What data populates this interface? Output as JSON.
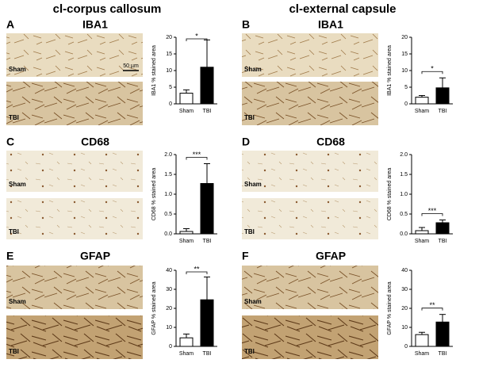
{
  "columns": [
    "cl-corpus callosum",
    "cl-external capsule"
  ],
  "scale_bar": "50 µm",
  "panels": [
    {
      "letter": "A",
      "stain": "IBA1",
      "image_labels": [
        "Sham",
        "TBI"
      ]
    },
    {
      "letter": "B",
      "stain": "IBA1",
      "image_labels": [
        "Sham",
        "TBI"
      ]
    },
    {
      "letter": "C",
      "stain": "CD68",
      "image_labels": [
        "Sham",
        "TBI"
      ]
    },
    {
      "letter": "D",
      "stain": "CD68",
      "image_labels": [
        "Sham",
        "TBI"
      ]
    },
    {
      "letter": "E",
      "stain": "GFAP",
      "image_labels": [
        "Sham",
        "TBI"
      ]
    },
    {
      "letter": "F",
      "stain": "GFAP",
      "image_labels": [
        "Sham",
        "TBI"
      ]
    }
  ],
  "chart_data": [
    {
      "type": "bar",
      "ylabel": "IBA1 % stained area",
      "categories": [
        "Sham",
        "TBI"
      ],
      "values": [
        3.2,
        11
      ],
      "errors": [
        1.0,
        8.2
      ],
      "colors": [
        "#ffffff",
        "#000000"
      ],
      "ylim": [
        0,
        20
      ],
      "yticks": [
        0,
        5,
        10,
        15,
        20
      ],
      "annotation": "*"
    },
    {
      "type": "bar",
      "ylabel": "IBA1 % stained area",
      "categories": [
        "Sham",
        "TBI"
      ],
      "values": [
        2.0,
        4.8
      ],
      "errors": [
        0.5,
        3.0
      ],
      "colors": [
        "#ffffff",
        "#000000"
      ],
      "ylim": [
        0,
        20
      ],
      "yticks": [
        0,
        5,
        10,
        15,
        20
      ],
      "annotation": "*"
    },
    {
      "type": "bar",
      "ylabel": "CD68 % stained area",
      "categories": [
        "Sham",
        "TBI"
      ],
      "values": [
        0.06,
        1.27
      ],
      "errors": [
        0.07,
        0.5
      ],
      "colors": [
        "#ffffff",
        "#000000"
      ],
      "ylim": [
        0,
        2
      ],
      "yticks": [
        {
          "value": 0,
          "label": "0.0"
        },
        0.5,
        {
          "value": 1,
          "label": "1.0"
        },
        1.5,
        {
          "value": 2,
          "label": "2.0"
        }
      ],
      "annotation": "***"
    },
    {
      "type": "bar",
      "ylabel": "CD68 % stained area",
      "categories": [
        "Sham",
        "TBI"
      ],
      "values": [
        0.08,
        0.28
      ],
      "errors": [
        0.08,
        0.07
      ],
      "colors": [
        "#ffffff",
        "#000000"
      ],
      "ylim": [
        0,
        2
      ],
      "yticks": [
        {
          "value": 0,
          "label": "0.0"
        },
        0.5,
        {
          "value": 1,
          "label": "1.0"
        },
        1.5,
        {
          "value": 2,
          "label": "2.0"
        }
      ],
      "annotation": "***"
    },
    {
      "type": "bar",
      "ylabel": "GFAP % stained area",
      "categories": [
        "Sham",
        "TBI"
      ],
      "values": [
        4.5,
        24.5
      ],
      "errors": [
        2.0,
        12
      ],
      "colors": [
        "#ffffff",
        "#000000"
      ],
      "ylim": [
        0,
        40
      ],
      "yticks": [
        0,
        10,
        20,
        30,
        40
      ],
      "annotation": "**"
    },
    {
      "type": "bar",
      "ylabel": "GFAP % stained area",
      "categories": [
        "Sham",
        "TBI"
      ],
      "values": [
        6.2,
        12.8
      ],
      "errors": [
        1.2,
        4
      ],
      "colors": [
        "#ffffff",
        "#000000"
      ],
      "ylim": [
        0,
        40
      ],
      "yticks": [
        0,
        10,
        20,
        30,
        40
      ],
      "annotation": "**"
    }
  ]
}
